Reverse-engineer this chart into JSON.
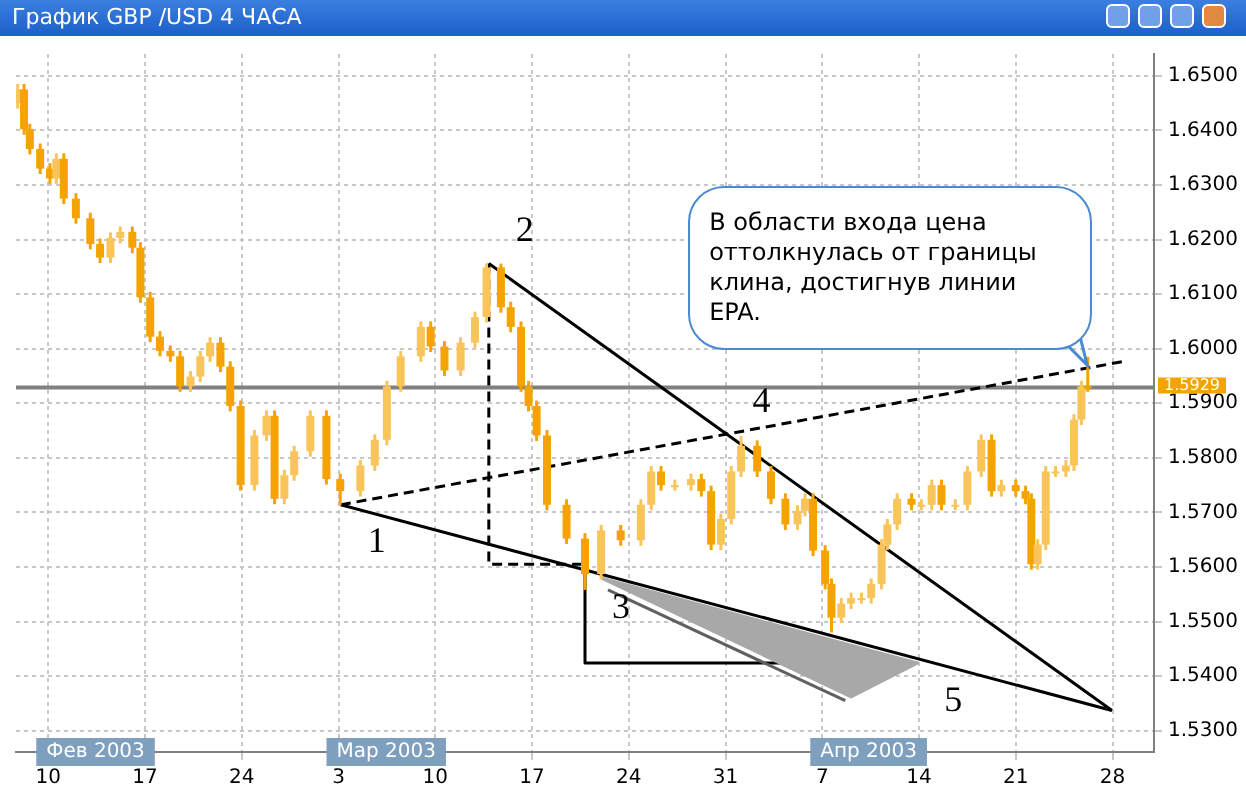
{
  "chart_data": {
    "type": "candlestick",
    "title": "График GBP /USD  4 ЧАСА",
    "colors": [
      "#f9c45a",
      "#f5a300",
      "#f5a300",
      "#f5a300",
      "#f5a300",
      "#f9c45a",
      "#f5a300",
      "#f5a300",
      "#f5a300",
      "#f5a300",
      "#f9c45a",
      "#f9c45a",
      "#f5a300",
      "#f5a300",
      "#f5a300",
      "#f5a300",
      "#f5a300",
      "#f5a300",
      "#f9c45a",
      "#f9c45a",
      "#f9c45a",
      "#f5a300",
      "#f5a300",
      "#f5a300",
      "#f9c45a",
      "#f9c45a",
      "#f5a300",
      "#f9c45a",
      "#f9c45a",
      "#f9c45a",
      "#f5a300",
      "#f5a300",
      "#f9c45a",
      "#f9c45a",
      "#f9c45a",
      "#f9c45a",
      "#f9c45a",
      "#f5a300",
      "#f5a300",
      "#f9c45a",
      "#f9c45a",
      "#f9c45a",
      "#f5a300",
      "#f5a300",
      "#f5a300",
      "#f5a300",
      "#f5a300",
      "#f5a300",
      "#f5a300",
      "#f5a300",
      "#f9c45a",
      "#f5a300",
      "#f9c45a",
      "#f9c45a",
      "#f5a300",
      "#f9c45a",
      "#f9c45a",
      "#f5a300",
      "#f5a300",
      "#f9c45a",
      "#f9c45a",
      "#f9c45a",
      "#f5a300",
      "#f5a300",
      "#f5a300",
      "#f9c45a",
      "#f9c45a",
      "#f5a300",
      "#f5a300",
      "#f5a300",
      "#f9c45a",
      "#f9c45a",
      "#f9c45a",
      "#f9c45a",
      "#f9c45a",
      "#f9c45a",
      "#f9c45a",
      "#f5a300",
      "#f9c45a",
      "#f9c45a",
      "#f5a300",
      "#f9c45a",
      "#f9c45a",
      "#f9c45a",
      "#f5a300",
      "#f9c45a",
      "#f5a300",
      "#f5a300",
      "#f5a300",
      "#f9c45a",
      "#f9c45a",
      "#f9c45a",
      "#f9c45a",
      "#f9c45a",
      "#f9c45a",
      "#f5a300"
    ],
    "x": [
      "2003-02-07T19:00",
      "2003-02-08T06:00",
      "2003-02-08T16:00",
      "2003-02-09T10:00",
      "2003-02-10T03:00",
      "2003-02-10T14:00",
      "2003-02-11T03:00",
      "2003-02-12T00:00",
      "2003-02-13T01:00",
      "2003-02-13T18:00",
      "2003-02-14T12:00",
      "2003-02-15T05:00",
      "2003-02-16T02:00",
      "2003-02-16T16:00",
      "2003-02-17T09:00",
      "2003-02-18T02:00",
      "2003-02-18T20:00",
      "2003-02-19T13:00",
      "2003-02-20T07:00",
      "2003-02-21T00:00",
      "2003-02-21T17:00",
      "2003-02-22T11:00",
      "2003-02-23T04:00",
      "2003-02-23T22:00",
      "2003-02-24T22:00",
      "2003-02-25T19:00",
      "2003-02-26T09:00",
      "2003-02-27T02:00",
      "2003-02-27T19:00",
      "2003-02-28T23:00",
      "2003-03-02T03:00",
      "2003-03-03T03:00",
      "2003-03-04T14:00",
      "2003-03-05T15:00",
      "2003-03-06T12:00",
      "2003-03-07T12:00",
      "2003-03-08T23:00",
      "2003-03-09T16:00",
      "2003-03-10T16:00",
      "2003-03-11T20:00",
      "2003-03-12T21:00",
      "2003-03-13T17:00",
      "2003-03-14T18:00",
      "2003-03-15T11:00",
      "2003-03-16T05:00",
      "2003-03-16T18:00",
      "2003-03-17T08:00",
      "2003-03-18T02:00",
      "2003-03-19T12:00",
      "2003-03-20T20:00",
      "2003-03-22T00:00",
      "2003-03-23T10:00",
      "2003-03-24T21:00",
      "2003-03-25T15:00",
      "2003-03-26T08:00",
      "2003-03-27T08:00",
      "2003-03-28T12:00",
      "2003-03-29T06:00",
      "2003-03-29T23:00",
      "2003-03-30T16:00",
      "2003-03-31T10:00",
      "2003-04-01T03:00",
      "2003-04-02T07:00",
      "2003-04-03T07:00",
      "2003-04-04T08:00",
      "2003-04-05T05:00",
      "2003-04-05T18:00",
      "2003-04-06T08:00",
      "2003-04-07T05:00",
      "2003-04-07T16:00",
      "2003-04-08T09:00",
      "2003-04-09T02:00",
      "2003-04-09T20:00",
      "2003-04-10T13:00",
      "2003-04-11T07:00",
      "2003-04-11T17:00",
      "2003-04-12T10:00",
      "2003-04-13T11:00",
      "2003-04-14T04:00",
      "2003-04-14T22:00",
      "2003-04-15T15:00",
      "2003-04-16T15:00",
      "2003-04-17T12:00",
      "2003-04-18T12:00",
      "2003-04-19T06:00",
      "2003-04-19T23:00",
      "2003-04-21T00:00",
      "2003-04-21T17:00",
      "2003-04-22T03:00",
      "2003-04-22T14:00",
      "2003-04-23T04:00",
      "2003-04-23T21:00",
      "2003-04-24T15:00",
      "2003-04-25T05:00",
      "2003-04-25T18:00",
      "2003-04-26T05:00"
    ],
    "ohlc": [
      [
        1.645,
        1.6485,
        1.644,
        1.6475
      ],
      [
        1.6475,
        1.6485,
        1.6392,
        1.6402
      ],
      [
        1.6402,
        1.6412,
        1.6356,
        1.6366
      ],
      [
        1.6366,
        1.6376,
        1.632,
        1.633
      ],
      [
        1.633,
        1.634,
        1.6302,
        1.6312
      ],
      [
        1.6312,
        1.6358,
        1.6302,
        1.6348
      ],
      [
        1.6348,
        1.6358,
        1.6265,
        1.6275
      ],
      [
        1.6275,
        1.6285,
        1.6229,
        1.6239
      ],
      [
        1.6239,
        1.6249,
        1.6182,
        1.6192
      ],
      [
        1.6192,
        1.6202,
        1.6157,
        1.6167
      ],
      [
        1.6167,
        1.6213,
        1.6157,
        1.6203
      ],
      [
        1.6203,
        1.6224,
        1.6193,
        1.6214
      ],
      [
        1.6214,
        1.6224,
        1.6175,
        1.6185
      ],
      [
        1.6185,
        1.6195,
        1.6084,
        1.6094
      ],
      [
        1.6094,
        1.6104,
        1.6012,
        1.6022
      ],
      [
        1.6022,
        1.6032,
        1.5986,
        1.5996
      ],
      [
        1.5996,
        1.6006,
        1.5976,
        1.5986
      ],
      [
        1.5986,
        1.5996,
        1.5921,
        1.5931
      ],
      [
        1.5931,
        1.5959,
        1.5921,
        1.5949
      ],
      [
        1.5949,
        1.5996,
        1.5939,
        1.5986
      ],
      [
        1.5986,
        1.6021,
        1.5976,
        1.6011
      ],
      [
        1.6011,
        1.6021,
        1.5957,
        1.5967
      ],
      [
        1.5967,
        1.5977,
        1.5885,
        1.5895
      ],
      [
        1.5895,
        1.5905,
        1.574,
        1.575
      ],
      [
        1.575,
        1.5851,
        1.574,
        1.5841
      ],
      [
        1.5841,
        1.5887,
        1.5831,
        1.5877
      ],
      [
        1.5877,
        1.5887,
        1.5715,
        1.5725
      ],
      [
        1.5725,
        1.5778,
        1.5715,
        1.5768
      ],
      [
        1.5768,
        1.5822,
        1.5758,
        1.5812
      ],
      [
        1.5812,
        1.5887,
        1.5802,
        1.5877
      ],
      [
        1.5877,
        1.5887,
        1.5751,
        1.5761
      ],
      [
        1.5761,
        1.5771,
        1.5714,
        1.5739
      ],
      [
        1.5739,
        1.5796,
        1.5729,
        1.5786
      ],
      [
        1.5786,
        1.5843,
        1.5776,
        1.5833
      ],
      [
        1.5833,
        1.5941,
        1.5823,
        1.5931
      ],
      [
        1.5931,
        1.5996,
        1.5921,
        1.5986
      ],
      [
        1.5986,
        1.605,
        1.5976,
        1.604
      ],
      [
        1.604,
        1.605,
        1.5994,
        1.6004
      ],
      [
        1.6004,
        1.6014,
        1.595,
        1.596
      ],
      [
        1.596,
        1.6021,
        1.595,
        1.6011
      ],
      [
        1.6011,
        1.6068,
        1.6001,
        1.6058
      ],
      [
        1.6058,
        1.6156,
        1.6048,
        1.6149
      ],
      [
        1.6149,
        1.6156,
        1.6066,
        1.6076
      ],
      [
        1.6076,
        1.6086,
        1.603,
        1.604
      ],
      [
        1.604,
        1.605,
        1.5921,
        1.5931
      ],
      [
        1.5931,
        1.5941,
        1.5885,
        1.5895
      ],
      [
        1.5895,
        1.5905,
        1.5831,
        1.5841
      ],
      [
        1.5841,
        1.5851,
        1.5704,
        1.5714
      ],
      [
        1.5714,
        1.5724,
        1.5642,
        1.5652
      ],
      [
        1.5652,
        1.5662,
        1.5558,
        1.5587
      ],
      [
        1.5587,
        1.5677,
        1.5577,
        1.5667
      ],
      [
        1.5667,
        1.5677,
        1.5639,
        1.5649
      ],
      [
        1.5649,
        1.5724,
        1.5639,
        1.5714
      ],
      [
        1.5714,
        1.5785,
        1.5704,
        1.5775
      ],
      [
        1.5775,
        1.5785,
        1.574,
        1.575
      ],
      [
        1.575,
        1.576,
        1.574,
        1.575
      ],
      [
        1.575,
        1.5771,
        1.574,
        1.5761
      ],
      [
        1.5761,
        1.5771,
        1.5729,
        1.5739
      ],
      [
        1.5739,
        1.5749,
        1.5631,
        1.5641
      ],
      [
        1.5641,
        1.5698,
        1.5631,
        1.5688
      ],
      [
        1.5688,
        1.5785,
        1.5678,
        1.5775
      ],
      [
        1.5775,
        1.584,
        1.5765,
        1.5822
      ],
      [
        1.5822,
        1.5832,
        1.5765,
        1.5775
      ],
      [
        1.5775,
        1.5785,
        1.5715,
        1.5725
      ],
      [
        1.5725,
        1.5735,
        1.5668,
        1.5678
      ],
      [
        1.5678,
        1.5713,
        1.5668,
        1.5703
      ],
      [
        1.5703,
        1.5735,
        1.5693,
        1.5725
      ],
      [
        1.5725,
        1.5735,
        1.562,
        1.563
      ],
      [
        1.563,
        1.564,
        1.5559,
        1.5569
      ],
      [
        1.5569,
        1.5579,
        1.548,
        1.5507
      ],
      [
        1.5507,
        1.5543,
        1.5497,
        1.5533
      ],
      [
        1.5533,
        1.5553,
        1.5523,
        1.5543
      ],
      [
        1.5543,
        1.5553,
        1.5533,
        1.5543
      ],
      [
        1.5543,
        1.5579,
        1.5533,
        1.5569
      ],
      [
        1.5569,
        1.5651,
        1.5559,
        1.5641
      ],
      [
        1.5641,
        1.5688,
        1.5631,
        1.5678
      ],
      [
        1.5678,
        1.5735,
        1.5668,
        1.5725
      ],
      [
        1.5725,
        1.5735,
        1.5704,
        1.5714
      ],
      [
        1.5714,
        1.5724,
        1.5704,
        1.5714
      ],
      [
        1.5714,
        1.576,
        1.5704,
        1.575
      ],
      [
        1.575,
        1.576,
        1.5704,
        1.5714
      ],
      [
        1.5714,
        1.5724,
        1.5704,
        1.5714
      ],
      [
        1.5714,
        1.5785,
        1.5704,
        1.5775
      ],
      [
        1.5775,
        1.5843,
        1.5765,
        1.5833
      ],
      [
        1.5833,
        1.5843,
        1.5729,
        1.5739
      ],
      [
        1.5739,
        1.576,
        1.5729,
        1.575
      ],
      [
        1.575,
        1.576,
        1.5729,
        1.5739
      ],
      [
        1.5739,
        1.5749,
        1.5715,
        1.5725
      ],
      [
        1.5725,
        1.5735,
        1.5595,
        1.5605
      ],
      [
        1.5605,
        1.5651,
        1.5595,
        1.5641
      ],
      [
        1.5641,
        1.5785,
        1.5631,
        1.5775
      ],
      [
        1.5775,
        1.5785,
        1.5765,
        1.5775
      ],
      [
        1.5775,
        1.5796,
        1.5765,
        1.5786
      ],
      [
        1.5786,
        1.588,
        1.5776,
        1.587
      ],
      [
        1.587,
        1.5941,
        1.586,
        1.5931
      ],
      [
        1.5931,
        1.5985,
        1.5921,
        1.5929
      ]
    ],
    "series": [
      {
        "type": "line",
        "color": "#000000",
        "x": [
          "2003-03-03T04:00",
          "2003-04-27T23:00"
        ],
        "values": [
          1.5714,
          1.5337
        ]
      },
      {
        "type": "line",
        "color": "#000000",
        "x": [
          "2003-03-13T21:00",
          "2003-04-27T23:00"
        ],
        "values": [
          1.6156,
          1.5337
        ]
      },
      {
        "type": "line",
        "color": "#000000",
        "line_style": "dashed",
        "x": [
          "2003-03-03T04:00",
          "2003-04-29T02:00"
        ],
        "values": [
          1.5714,
          1.5978
        ]
      },
      {
        "type": "line",
        "color": "#000000",
        "line_style": "dashed",
        "x": [
          "2003-03-13T21:00",
          "2003-03-13T21:00",
          "2003-03-20T20:00"
        ],
        "values": [
          1.6156,
          1.5605,
          1.5605
        ]
      },
      {
        "type": "line",
        "color": "#000000",
        "x": [
          "2003-03-20T20:00",
          "2003-03-20T20:00",
          "2003-04-13T21:00"
        ],
        "values": [
          1.5594,
          1.5424,
          1.5424
        ]
      },
      {
        "type": "area",
        "color": "#a8a8a8",
        "x": [
          "2003-03-22T00:00",
          "2003-04-13T21:00",
          "2003-04-09T02:00",
          "2003-03-22T00:00"
        ],
        "values": [
          1.558,
          1.5424,
          1.5362,
          1.558
        ]
      },
      {
        "type": "line",
        "color": "#606060",
        "x": [
          "2003-03-22T12:00",
          "2003-04-08T16:00"
        ],
        "values": [
          1.5558,
          1.5355
        ]
      }
    ],
    "xlim": [
      "2003-02-07T16:00",
      "2003-05-01T00:00"
    ],
    "xticks": [
      {
        "value": "2003-02-10",
        "label": "10"
      },
      {
        "value": "2003-02-17",
        "label": "17"
      },
      {
        "value": "2003-02-24",
        "label": "24"
      },
      {
        "value": "2003-03-03",
        "label": "3"
      },
      {
        "value": "2003-03-10",
        "label": "10"
      },
      {
        "value": "2003-03-17",
        "label": "17"
      },
      {
        "value": "2003-03-24",
        "label": "24"
      },
      {
        "value": "2003-03-31",
        "label": "31"
      },
      {
        "value": "2003-04-07",
        "label": "7"
      },
      {
        "value": "2003-04-14",
        "label": "14"
      },
      {
        "value": "2003-04-21",
        "label": "21"
      },
      {
        "value": "2003-04-28",
        "label": "28"
      }
    ],
    "ylim": [
      1.5261,
      1.654
    ],
    "yticks": [
      {
        "value": 1.53,
        "label": "1.5300"
      },
      {
        "value": 1.54,
        "label": "1.5400"
      },
      {
        "value": 1.55,
        "label": "1.5500"
      },
      {
        "value": 1.56,
        "label": "1.5600"
      },
      {
        "value": 1.57,
        "label": "1.5700"
      },
      {
        "value": 1.58,
        "label": "1.5800"
      },
      {
        "value": 1.59,
        "label": "1.5900"
      },
      {
        "value": 1.6,
        "label": "1.6000"
      },
      {
        "value": 1.61,
        "label": "1.6100"
      },
      {
        "value": 1.62,
        "label": "1.6200"
      },
      {
        "value": 1.63,
        "label": "1.6300"
      },
      {
        "value": 1.64,
        "label": "1.6400"
      },
      {
        "value": 1.65,
        "label": "1.6500"
      }
    ],
    "ref_lines": [
      {
        "axis": "y",
        "value": 1.5929,
        "label": "1.5929",
        "color": "#808080"
      }
    ],
    "annotations": [
      "Фев 2003",
      "Мар 2003",
      "Апр 2003",
      {
        "text": "1",
        "x": "2003-03-03T04:00",
        "y": 1.5714
      },
      {
        "text": "2",
        "x": "2003-03-13T21:00",
        "y": 1.6156
      },
      {
        "text": "3",
        "x": "2003-03-20T20:00",
        "y": 1.5594
      },
      {
        "text": "4",
        "x": "2003-03-31T00:00",
        "y": 1.5843
      },
      {
        "text": "5",
        "x": "2003-04-13T21:00",
        "y": 1.5424
      },
      {
        "text": "В области входа цена оттолкнулась от границы клина, достигнув линии EPA.",
        "x": "2003-04-26T04:00",
        "y": 1.597
      }
    ],
    "grid": true,
    "legend": false
  }
}
